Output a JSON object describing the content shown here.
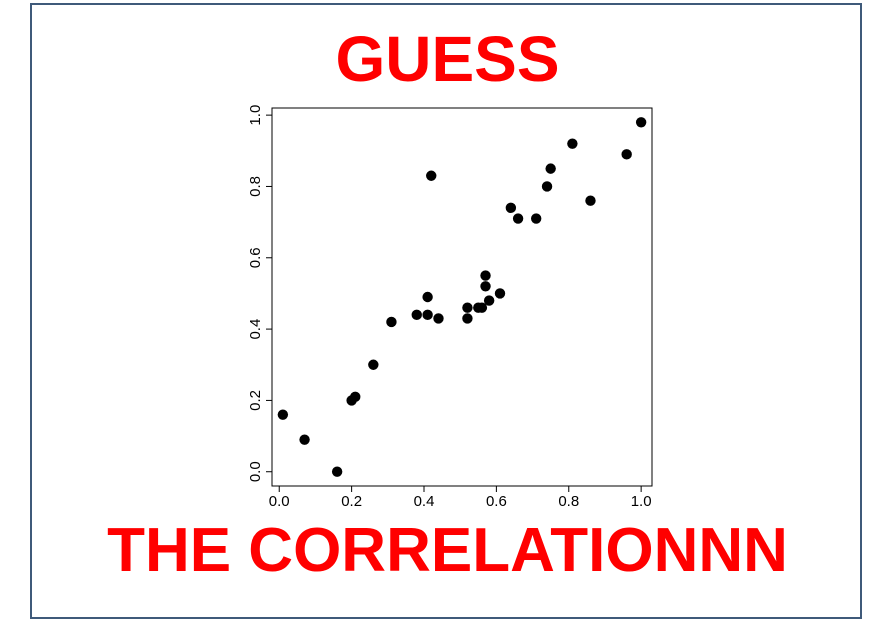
{
  "title_top": "GUESS",
  "title_bottom": "THE CORRELATIONNN",
  "colors": {
    "title": "#ff0000",
    "frame_border": "#3f5a7a",
    "points": "#000000"
  },
  "chart_data": {
    "type": "scatter",
    "title": "",
    "xlabel": "",
    "ylabel": "",
    "xlim": [
      -0.02,
      1.03
    ],
    "ylim": [
      -0.04,
      1.02
    ],
    "x_ticks": [
      "0.0",
      "0.2",
      "0.4",
      "0.6",
      "0.8",
      "1.0"
    ],
    "y_ticks": [
      "0.0",
      "0.2",
      "0.4",
      "0.6",
      "0.8",
      "1.0"
    ],
    "y_tick_rotation": "vertical",
    "grid": false,
    "legend": "none",
    "points": [
      {
        "x": 0.01,
        "y": 0.16
      },
      {
        "x": 0.07,
        "y": 0.09
      },
      {
        "x": 0.16,
        "y": 0.0
      },
      {
        "x": 0.2,
        "y": 0.2
      },
      {
        "x": 0.21,
        "y": 0.21
      },
      {
        "x": 0.26,
        "y": 0.3
      },
      {
        "x": 0.31,
        "y": 0.42
      },
      {
        "x": 0.38,
        "y": 0.44
      },
      {
        "x": 0.41,
        "y": 0.49
      },
      {
        "x": 0.41,
        "y": 0.44
      },
      {
        "x": 0.42,
        "y": 0.83
      },
      {
        "x": 0.44,
        "y": 0.43
      },
      {
        "x": 0.52,
        "y": 0.46
      },
      {
        "x": 0.52,
        "y": 0.43
      },
      {
        "x": 0.55,
        "y": 0.46
      },
      {
        "x": 0.56,
        "y": 0.46
      },
      {
        "x": 0.57,
        "y": 0.55
      },
      {
        "x": 0.57,
        "y": 0.52
      },
      {
        "x": 0.58,
        "y": 0.48
      },
      {
        "x": 0.61,
        "y": 0.5
      },
      {
        "x": 0.64,
        "y": 0.74
      },
      {
        "x": 0.66,
        "y": 0.71
      },
      {
        "x": 0.71,
        "y": 0.71
      },
      {
        "x": 0.74,
        "y": 0.8
      },
      {
        "x": 0.75,
        "y": 0.85
      },
      {
        "x": 0.81,
        "y": 0.92
      },
      {
        "x": 0.86,
        "y": 0.76
      },
      {
        "x": 0.96,
        "y": 0.89
      },
      {
        "x": 1.0,
        "y": 0.98
      }
    ]
  }
}
